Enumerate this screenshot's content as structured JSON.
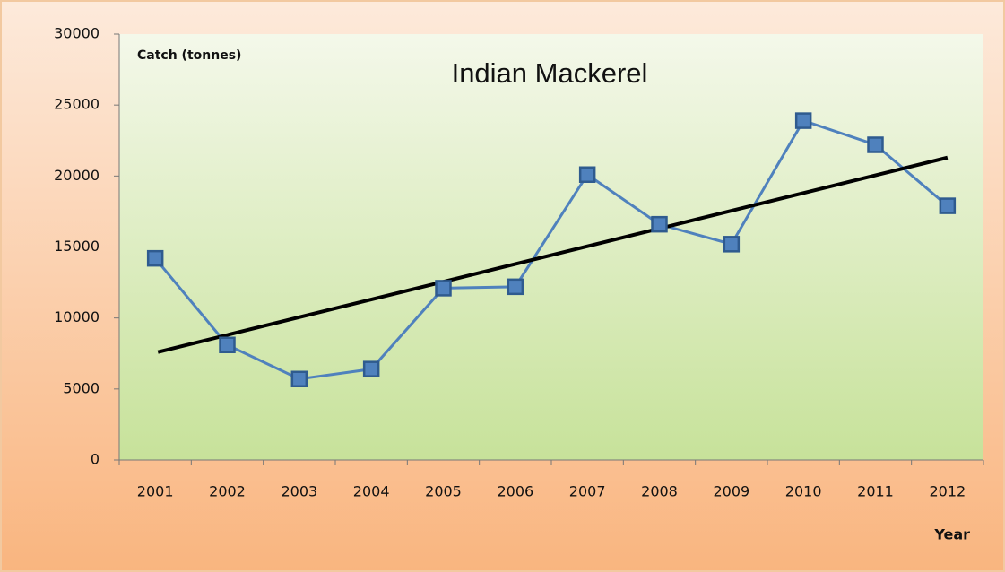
{
  "chart_data": {
    "type": "line",
    "title": "Indian Mackerel",
    "y_label": "Catch (tonnes)",
    "x_label": "Year",
    "categories": [
      "2001",
      "2002",
      "2003",
      "2004",
      "2005",
      "2006",
      "2007",
      "2008",
      "2009",
      "2010",
      "2011",
      "2012"
    ],
    "series": [
      {
        "color": "#4f81bd",
        "values": [
          14200,
          8100,
          5700,
          6400,
          12100,
          12200,
          20100,
          16600,
          15200,
          23900,
          22200,
          17900
        ]
      }
    ],
    "trendline": {
      "color": "#000000",
      "start": 7600,
      "end": 21300
    },
    "ylim": [
      0,
      30000
    ],
    "yticks": [
      0,
      5000,
      10000,
      15000,
      20000,
      25000,
      30000
    ]
  }
}
